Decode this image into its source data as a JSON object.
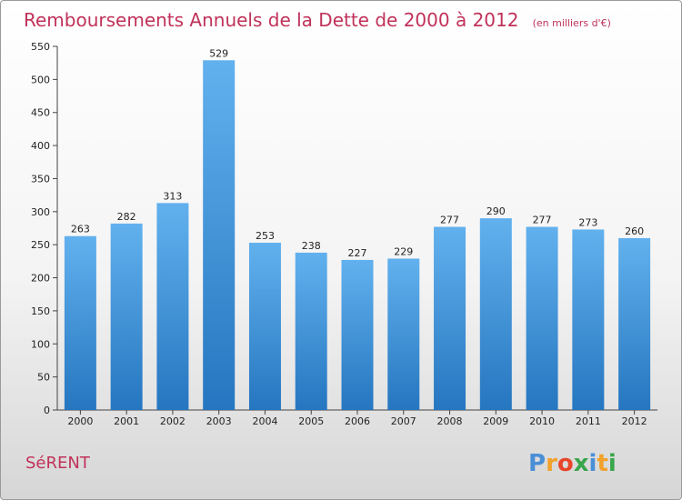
{
  "chart_data": {
    "type": "bar",
    "title": "Remboursements Annuels de la Dette de 2000 à 2012",
    "subtitle": "(en milliers d'€)",
    "categories": [
      "2000",
      "2001",
      "2002",
      "2003",
      "2004",
      "2005",
      "2006",
      "2007",
      "2008",
      "2009",
      "2010",
      "2011",
      "2012"
    ],
    "values": [
      263,
      282,
      313,
      529,
      253,
      238,
      227,
      229,
      277,
      290,
      277,
      273,
      260
    ],
    "ylim": [
      0,
      550
    ],
    "yticks": [
      "0",
      "50",
      "100",
      "150",
      "200",
      "250",
      "300",
      "350",
      "400",
      "450",
      "500",
      "550"
    ],
    "grid": false,
    "bar_color": "#4f9fe0"
  },
  "commune": "SéRENT",
  "logo": {
    "letters": [
      "P",
      "r",
      "o",
      "x",
      "i",
      "t",
      "i"
    ],
    "colors": [
      "#4a8fd6",
      "#f2a12b",
      "#e8462b",
      "#3aa64a",
      "#4a8fd6",
      "#f2a12b",
      "#3aa64a"
    ]
  }
}
